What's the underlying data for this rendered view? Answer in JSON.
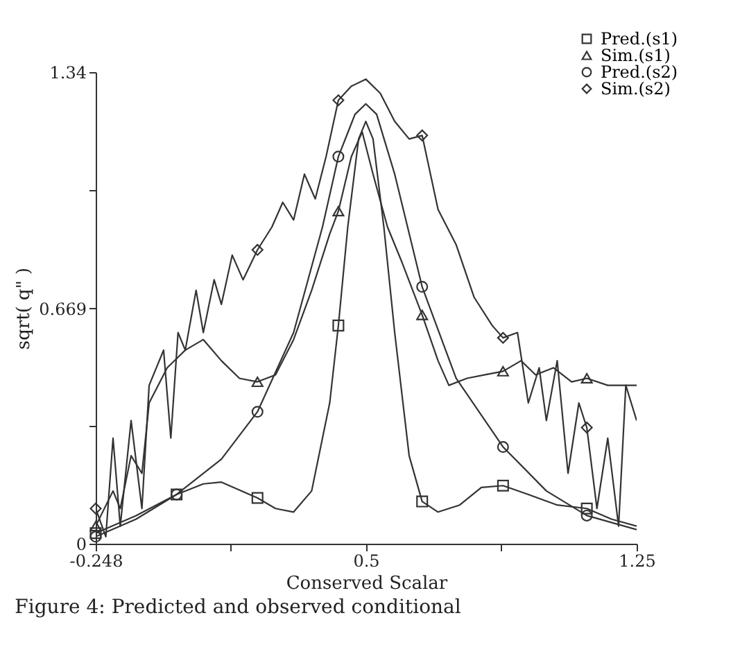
{
  "chart_data": {
    "type": "line",
    "xlabel": "Conserved Scalar",
    "ylabel": "sqrt( q\" )",
    "annotations": [
      "Figure 4: Predicted and observed conditional"
    ],
    "xlim": [
      -0.248,
      1.25
    ],
    "xticks": [
      -0.248,
      {
        "value": 0.126,
        "label": null
      },
      0.5,
      {
        "value": 0.874,
        "label": null
      },
      1.25
    ],
    "ylim": [
      0,
      1.34
    ],
    "yticks": [
      0,
      {
        "value": 0.3345,
        "label": null
      },
      0.669,
      {
        "value": 1.0035,
        "label": null
      },
      1.34
    ],
    "grid": false,
    "legend": "top right",
    "series": [
      {
        "color": "#333333",
        "x": [
          -0.248,
          -0.136,
          -0.024,
          0.05,
          0.1,
          0.2,
          0.25,
          0.3,
          0.35,
          0.4,
          0.424,
          0.45,
          0.48,
          0.5,
          0.52,
          0.55,
          0.58,
          0.62,
          0.656,
          0.7,
          0.76,
          0.82,
          0.88,
          0.95,
          1.03,
          1.112,
          1.18,
          1.25
        ],
        "values": [
          0.03,
          0.08,
          0.14,
          0.17,
          0.175,
          0.13,
          0.1,
          0.09,
          0.15,
          0.4,
          0.62,
          0.9,
          1.15,
          1.2,
          1.15,
          0.9,
          0.6,
          0.25,
          0.12,
          0.09,
          0.11,
          0.16,
          0.165,
          0.14,
          0.11,
          0.1,
          0.07,
          0.05
        ]
      },
      {
        "color": "#333333",
        "x": [
          -0.248,
          -0.2,
          -0.18,
          -0.15,
          -0.12,
          -0.1,
          -0.05,
          0.0,
          0.05,
          0.1,
          0.15,
          0.2,
          0.25,
          0.3,
          0.35,
          0.4,
          0.424,
          0.46,
          0.49,
          0.52,
          0.56,
          0.6,
          0.656,
          0.7,
          0.73,
          0.78,
          0.83,
          0.88,
          0.93,
          0.97,
          1.02,
          1.07,
          1.112,
          1.17,
          1.25
        ],
        "values": [
          0.05,
          0.15,
          0.1,
          0.25,
          0.2,
          0.4,
          0.5,
          0.55,
          0.58,
          0.52,
          0.47,
          0.46,
          0.48,
          0.58,
          0.72,
          0.88,
          0.945,
          1.1,
          1.17,
          1.05,
          0.9,
          0.8,
          0.65,
          0.52,
          0.45,
          0.47,
          0.48,
          0.49,
          0.52,
          0.48,
          0.5,
          0.46,
          0.47,
          0.45,
          0.45
        ]
      },
      {
        "color": "#333333",
        "x": [
          -0.248,
          -0.136,
          -0.024,
          0.1,
          0.2,
          0.3,
          0.38,
          0.424,
          0.47,
          0.5,
          0.53,
          0.58,
          0.656,
          0.75,
          0.88,
          1.0,
          1.112,
          1.25
        ],
        "values": [
          0.02,
          0.07,
          0.14,
          0.24,
          0.375,
          0.6,
          0.9,
          1.1,
          1.22,
          1.25,
          1.22,
          1.05,
          0.73,
          0.47,
          0.275,
          0.15,
          0.08,
          0.04
        ]
      },
      {
        "color": "#333333",
        "x": [
          -0.248,
          -0.22,
          -0.2,
          -0.18,
          -0.15,
          -0.12,
          -0.1,
          -0.06,
          -0.04,
          -0.02,
          0.0,
          0.03,
          0.05,
          0.08,
          0.1,
          0.13,
          0.16,
          0.2,
          0.24,
          0.27,
          0.3,
          0.33,
          0.36,
          0.39,
          0.424,
          0.46,
          0.5,
          0.54,
          0.58,
          0.62,
          0.656,
          0.7,
          0.75,
          0.8,
          0.85,
          0.88,
          0.92,
          0.95,
          0.98,
          1.0,
          1.03,
          1.06,
          1.09,
          1.112,
          1.14,
          1.17,
          1.2,
          1.22,
          1.25
        ],
        "values": [
          0.1,
          0.02,
          0.3,
          0.05,
          0.35,
          0.1,
          0.45,
          0.55,
          0.3,
          0.6,
          0.55,
          0.72,
          0.6,
          0.75,
          0.68,
          0.82,
          0.75,
          0.835,
          0.9,
          0.97,
          0.92,
          1.05,
          0.98,
          1.1,
          1.26,
          1.3,
          1.32,
          1.28,
          1.2,
          1.15,
          1.16,
          0.95,
          0.85,
          0.7,
          0.62,
          0.585,
          0.6,
          0.4,
          0.5,
          0.35,
          0.52,
          0.2,
          0.4,
          0.33,
          0.1,
          0.3,
          0.05,
          0.45,
          0.35
        ]
      },
      {
        "type": "scatter",
        "name": "Pred.(s1)",
        "marker": "square",
        "color": "#333333",
        "x": [
          -0.248,
          -0.024,
          0.2,
          0.424,
          0.656,
          0.88,
          1.112
        ],
        "values": [
          0.03,
          0.14,
          0.13,
          0.62,
          0.12,
          0.165,
          0.1
        ]
      },
      {
        "type": "scatter",
        "name": "Sim.(s1)",
        "marker": "triangle",
        "color": "#333333",
        "x": [
          -0.248,
          0.2,
          0.424,
          0.656,
          0.88,
          1.112
        ],
        "values": [
          0.05,
          0.46,
          0.945,
          0.65,
          0.49,
          0.47
        ]
      },
      {
        "type": "scatter",
        "name": "Pred.(s2)",
        "marker": "circle",
        "color": "#333333",
        "x": [
          -0.248,
          -0.024,
          0.2,
          0.424,
          0.656,
          0.88,
          1.112
        ],
        "values": [
          0.02,
          0.14,
          0.375,
          1.1,
          0.73,
          0.275,
          0.08
        ]
      },
      {
        "type": "scatter",
        "name": "Sim.(s2)",
        "marker": "diamond",
        "color": "#333333",
        "x": [
          -0.248,
          0.2,
          0.424,
          0.656,
          0.88,
          1.112
        ],
        "values": [
          0.1,
          0.835,
          1.26,
          1.16,
          0.585,
          0.33
        ]
      }
    ]
  }
}
